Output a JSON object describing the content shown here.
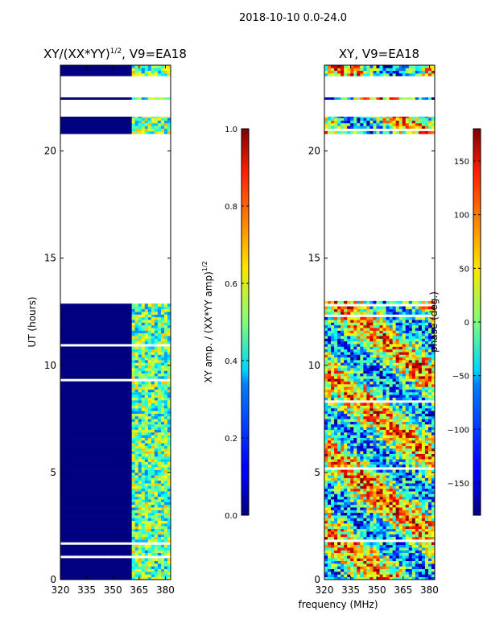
{
  "figure_title": "2018-10-10 0.0-24.0",
  "shared_xlabel": "frequency (MHz)",
  "chart_data": [
    {
      "type": "heatmap",
      "title_prefix": "XY/(XX*YY)",
      "title_sup": "1/2",
      "title_suffix": ", V9=EA18",
      "xlabel": "",
      "ylabel": "UT (hours)",
      "xlim": [
        320,
        383
      ],
      "ylim": [
        0,
        24
      ],
      "xticks": [
        320,
        335,
        350,
        365,
        380
      ],
      "yticks": [
        0,
        5,
        10,
        15,
        20
      ],
      "colorbar": {
        "label": "XY amp. / (XX*YY amp)",
        "label_sup": "1/2",
        "ticks": [
          "0.0",
          "0.2",
          "0.4",
          "0.6",
          "0.8",
          "1.0"
        ],
        "range": [
          0,
          1
        ]
      },
      "data_present_ut_ranges": [
        [
          0.0,
          13.0
        ],
        [
          20.8,
          21.6
        ],
        [
          22.4,
          22.5
        ],
        [
          23.5,
          24.0
        ]
      ],
      "high_amplitude_freq_range_mhz": [
        360,
        383
      ],
      "low_amplitude_value": 0.0
    },
    {
      "type": "heatmap",
      "title": "XY, V9=EA18",
      "xlabel": "",
      "ylabel": "",
      "xlim": [
        320,
        383
      ],
      "ylim": [
        0,
        24
      ],
      "xticks": [
        320,
        335,
        350,
        365,
        380
      ],
      "yticks": [
        0,
        5,
        10,
        15,
        20
      ],
      "colorbar": {
        "label": "phase (deg.)",
        "ticks": [
          "150",
          "100",
          "50",
          "0",
          "−50",
          "−100",
          "−150"
        ],
        "range": [
          -180,
          180
        ]
      },
      "data_present_ut_ranges": [
        [
          0.0,
          13.0
        ],
        [
          20.8,
          21.6
        ],
        [
          22.4,
          22.5
        ],
        [
          23.5,
          24.0
        ]
      ]
    }
  ]
}
